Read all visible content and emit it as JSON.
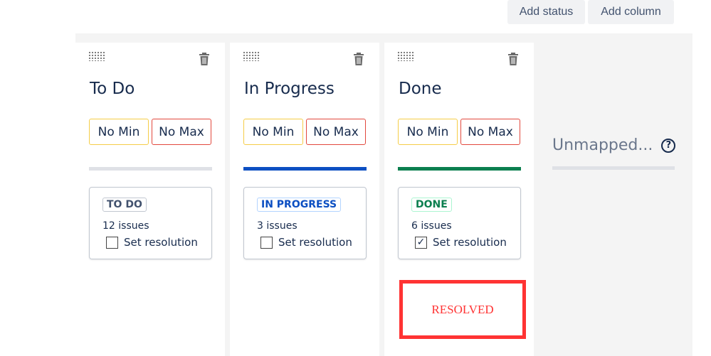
{
  "toolbar": {
    "add_status": "Add status",
    "add_column": "Add column"
  },
  "columns": [
    {
      "title": "To Do",
      "min": "No Min",
      "max": "No Max",
      "bar_color": "#dfe1e6",
      "status": {
        "label": "TO DO",
        "color": "#42526e",
        "border": "#c1c7d0",
        "bg": "#fff"
      },
      "count": "12 issues",
      "resolution_label": "Set resolution",
      "resolution_checked": false
    },
    {
      "title": "In Progress",
      "min": "No Min",
      "max": "No Max",
      "bar_color": "#0c4fc2",
      "status": {
        "label": "IN PROGRESS",
        "color": "#0c4fc2",
        "border": "#b3d4ff",
        "bg": "#fff"
      },
      "count": "3 issues",
      "resolution_label": "Set resolution",
      "resolution_checked": false
    },
    {
      "title": "Done",
      "min": "No Min",
      "max": "No Max",
      "bar_color": "#0b7f4f",
      "status": {
        "label": "DONE",
        "color": "#0b7f4f",
        "border": "#abf5d1",
        "bg": "#fff"
      },
      "count": "6 issues",
      "resolution_label": "Set resolution",
      "resolution_checked": true
    }
  ],
  "resolved_label": "RESOLVED",
  "unmapped": {
    "label": "Unmapped...",
    "help": "?"
  }
}
